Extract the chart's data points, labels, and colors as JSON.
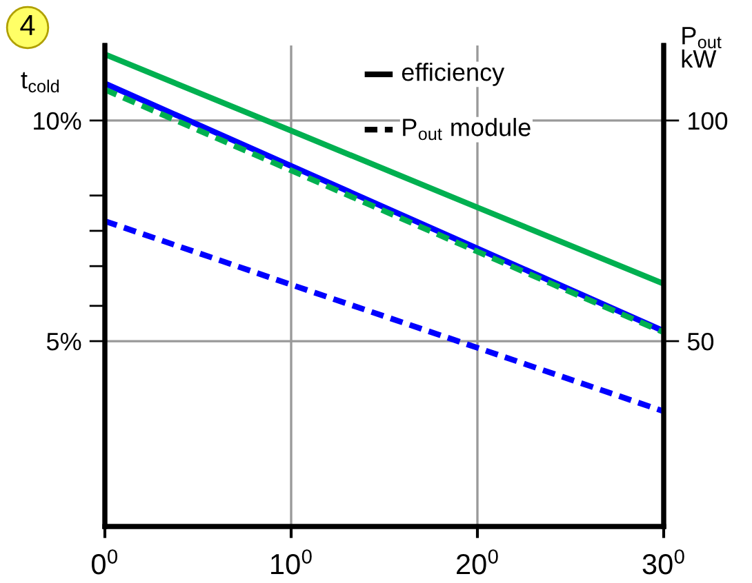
{
  "chart_data": {
    "type": "line",
    "ylabel": "t$_{cold}$",
    "y2label": "P$_{out}$\nkW",
    "annotations": [
      "4",
      "efficiency",
      "P$_{out}$ module"
    ],
    "categories": [
      "0$^{0}$",
      "10$^{0}$",
      "20$^{0}$",
      "30$^{0}$"
    ],
    "ylim": [
      0.8,
      11.7
    ],
    "yticks": [
      {
        "value": 5,
        "label": "5%"
      },
      {
        "value": 5.8,
        "label": null
      },
      {
        "value": 6.7,
        "label": null
      },
      {
        "value": 7.5,
        "label": null
      },
      {
        "value": 8.3,
        "label": null
      },
      {
        "value": 10,
        "label": "10%"
      }
    ],
    "y2lim": [
      8,
      117
    ],
    "y2ticks": [
      50,
      100
    ],
    "series": [
      {
        "color": "#00b050",
        "line_style": "solid",
        "values": [
          11.5,
          9.77,
          8.03,
          6.3
        ]
      },
      {
        "color": "#0000ff",
        "line_style": "solid",
        "values": [
          10.84,
          8.97,
          7.1,
          5.23
        ]
      },
      {
        "color": "#00b050",
        "line_style": "dashed",
        "axis": "y2",
        "values": [
          107,
          88.7,
          70.3,
          52
        ]
      },
      {
        "color": "#0000ff",
        "line_style": "dashed",
        "axis": "y2",
        "values": [
          77.2,
          62.8,
          48.5,
          34.1
        ]
      }
    ],
    "grid": true
  }
}
